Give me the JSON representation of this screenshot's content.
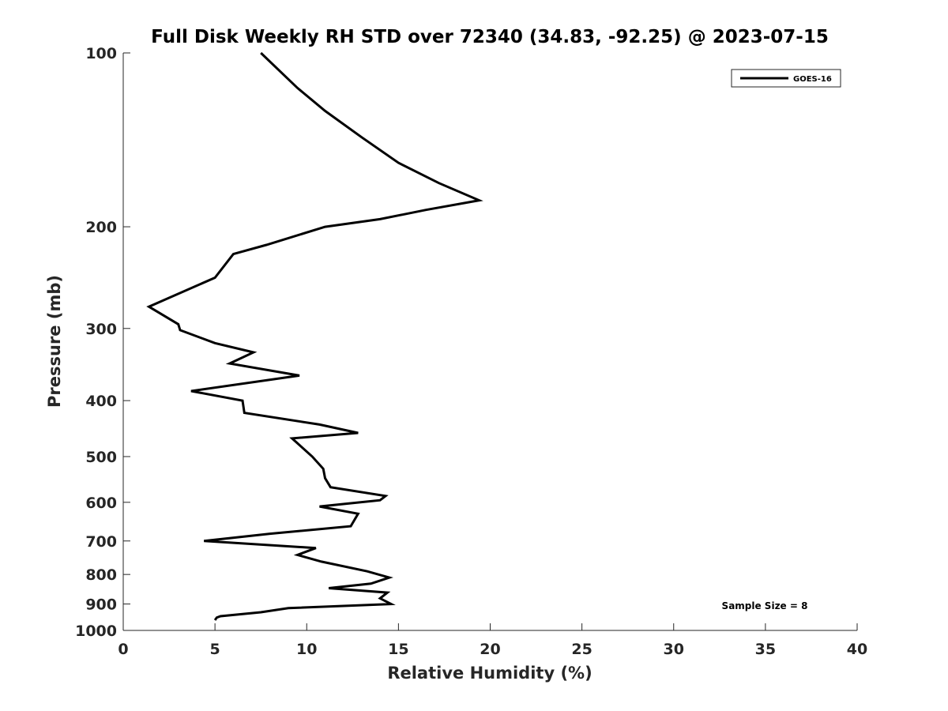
{
  "chart_data": {
    "type": "line",
    "title": "Full Disk Weekly RH STD over 72340 (34.83, -92.25) @ 2023-07-15",
    "xlabel": "Relative Humidity (%)",
    "ylabel": "Pressure (mb)",
    "xlim": [
      0,
      40
    ],
    "ylim": [
      100,
      1000
    ],
    "y_scale": "log",
    "y_reversed": true,
    "xticks": [
      0,
      5,
      10,
      15,
      20,
      25,
      30,
      35,
      40
    ],
    "yticks": [
      100,
      200,
      300,
      400,
      500,
      600,
      700,
      800,
      900,
      1000
    ],
    "grid": false,
    "legend_position": "top-right",
    "annotation": "Sample Size = 8",
    "series": [
      {
        "name": "GOES-16",
        "color": "#000000",
        "points": [
          [
            7.5,
            100
          ],
          [
            9.5,
            115
          ],
          [
            11.0,
            126
          ],
          [
            13.0,
            140
          ],
          [
            15.0,
            155
          ],
          [
            17.2,
            168
          ],
          [
            19.4,
            180
          ],
          [
            16.5,
            187
          ],
          [
            14.0,
            194
          ],
          [
            11.0,
            200
          ],
          [
            7.8,
            215
          ],
          [
            6.0,
            223
          ],
          [
            5.0,
            245
          ],
          [
            1.4,
            275
          ],
          [
            3.0,
            295
          ],
          [
            3.1,
            302
          ],
          [
            5.0,
            318
          ],
          [
            7.1,
            330
          ],
          [
            5.8,
            345
          ],
          [
            9.6,
            362
          ],
          [
            3.7,
            385
          ],
          [
            6.5,
            400
          ],
          [
            6.6,
            420
          ],
          [
            10.7,
            440
          ],
          [
            12.8,
            455
          ],
          [
            9.2,
            465
          ],
          [
            10.3,
            500
          ],
          [
            10.9,
            525
          ],
          [
            11.0,
            545
          ],
          [
            11.3,
            565
          ],
          [
            14.3,
            585
          ],
          [
            14.0,
            595
          ],
          [
            10.7,
            610
          ],
          [
            12.8,
            628
          ],
          [
            12.4,
            660
          ],
          [
            8.0,
            680
          ],
          [
            4.4,
            700
          ],
          [
            10.5,
            720
          ],
          [
            9.5,
            740
          ],
          [
            10.8,
            760
          ],
          [
            13.3,
            790
          ],
          [
            14.5,
            810
          ],
          [
            13.5,
            830
          ],
          [
            11.2,
            845
          ],
          [
            14.4,
            860
          ],
          [
            14.0,
            880
          ],
          [
            14.6,
            900
          ],
          [
            9.0,
            915
          ],
          [
            7.5,
            930
          ],
          [
            5.3,
            945
          ],
          [
            5.1,
            950
          ],
          [
            5.0,
            960
          ]
        ]
      }
    ]
  }
}
